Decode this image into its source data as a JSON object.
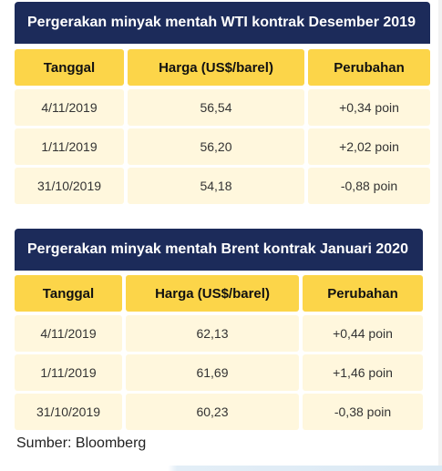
{
  "tables": [
    {
      "title": "Pergerakan minyak mentah WTI kontrak Desember 2019",
      "headers": [
        "Tanggal",
        "Harga (US$/barel)",
        "Perubahan"
      ],
      "rows": [
        [
          "4/11/2019",
          "56,54",
          "+0,34 poin"
        ],
        [
          "1/11/2019",
          "56,20",
          "+2,02 poin"
        ],
        [
          "31/10/2019",
          "54,18",
          "-0,88 poin"
        ]
      ]
    },
    {
      "title": "Pergerakan minyak mentah Brent kontrak Januari 2020",
      "headers": [
        "Tanggal",
        "Harga (US$/barel)",
        "Perubahan"
      ],
      "rows": [
        [
          "4/11/2019",
          "62,13",
          "+0,44 poin"
        ],
        [
          "1/11/2019",
          "61,69",
          "+1,46 poin"
        ],
        [
          "31/10/2019",
          "60,23",
          "-0,38 poin"
        ]
      ]
    }
  ],
  "source": "Sumber: Bloomberg",
  "colors": {
    "title_bg": "#1c2b5a",
    "header_bg": "#fcd549",
    "row_bg": "#fff7dd"
  }
}
